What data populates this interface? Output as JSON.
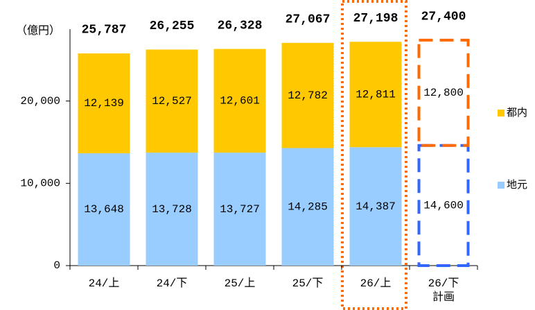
{
  "chart_data": {
    "type": "stacked_bar",
    "y_axis_label": "（億円）",
    "categories": [
      "24/上",
      "24/下",
      "25/上",
      "25/下",
      "26/上",
      "26/下\n計画"
    ],
    "series": [
      {
        "name": "地元",
        "color": "#99ccff",
        "values": [
          13648,
          13728,
          13727,
          14285,
          14387,
          14600
        ],
        "value_labels": [
          "13,648",
          "13,728",
          "13,727",
          "14,285",
          "14,387",
          "14,600"
        ]
      },
      {
        "name": "都内",
        "color": "#ffc800",
        "values": [
          12139,
          12527,
          12601,
          12782,
          12811,
          12800
        ],
        "value_labels": [
          "12,139",
          "12,527",
          "12,601",
          "12,782",
          "12,811",
          "12,800"
        ]
      }
    ],
    "totals": {
      "values": [
        25787,
        26255,
        26328,
        27067,
        27198,
        27400
      ],
      "value_labels": [
        "25,787",
        "26,255",
        "26,328",
        "27,067",
        "27,198",
        "27,400"
      ],
      "color": "#0000ff"
    },
    "ylim": [
      0,
      30000
    ],
    "yticks": [
      0,
      {
        "value": 10000,
        "label": "10,000"
      },
      {
        "value": 20000,
        "label": "20,000"
      }
    ],
    "grid": false
  }
}
